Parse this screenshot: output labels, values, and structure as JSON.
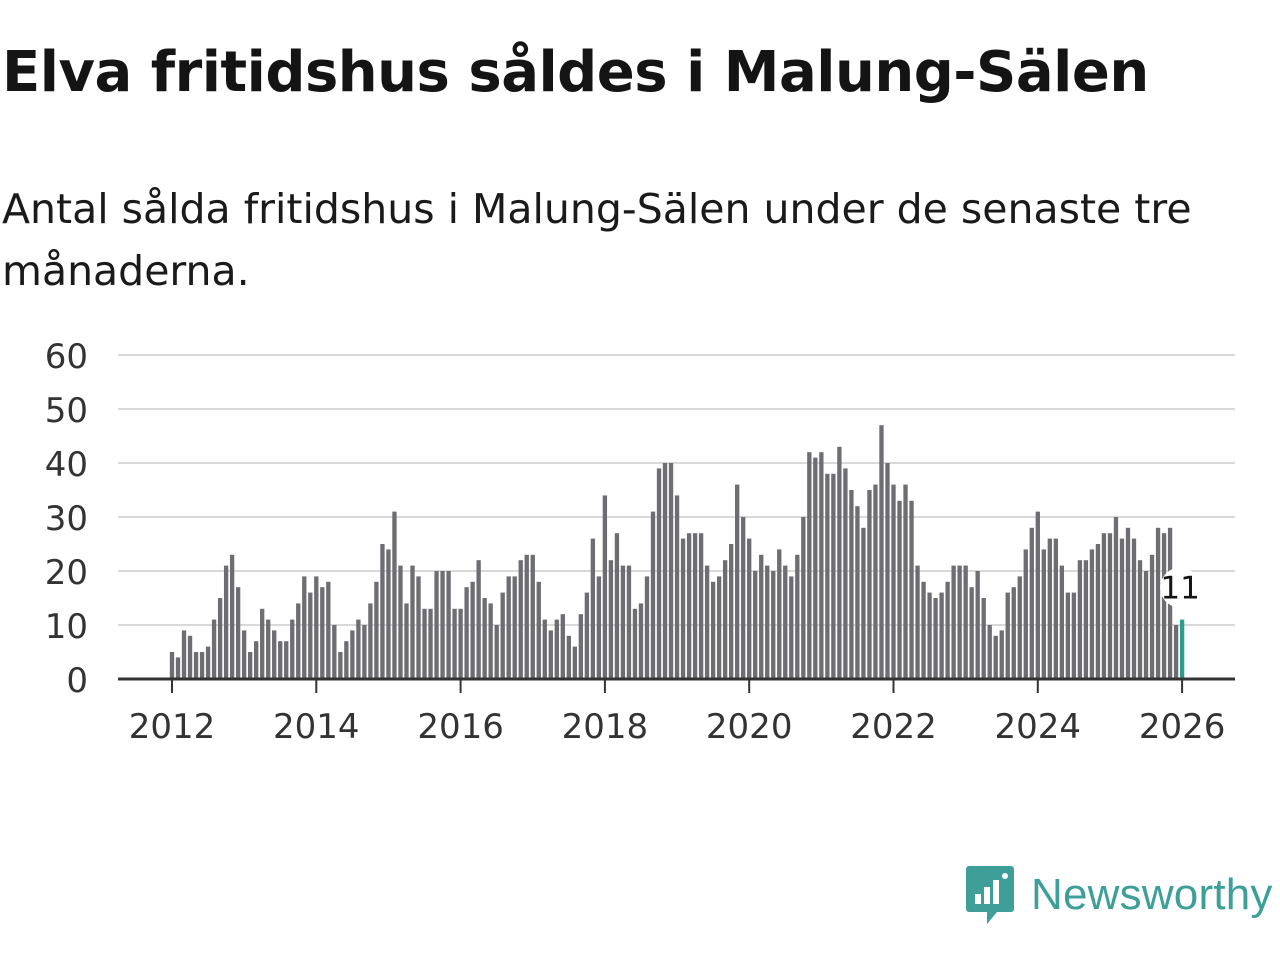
{
  "title": "Elva fritidshus såldes i Malung-Sälen",
  "subtitle": "Antal sålda fritidshus i Malung-Sälen under de senaste tre månaderna.",
  "brand": {
    "name": "Newsworthy",
    "color": "#3d9f98",
    "icon": "newsworthy-logo-icon"
  },
  "colors": {
    "bar": "#6e6d72",
    "highlight": "#2a9d8f",
    "grid": "#d9d9d9",
    "axis": "#333333"
  },
  "chart_data": {
    "type": "bar",
    "title": "Elva fritidshus såldes i Malung-Sälen",
    "xlabel": "",
    "ylabel": "",
    "ylim": [
      0,
      60
    ],
    "yticks": [
      "0",
      "10",
      "20",
      "30",
      "40",
      "50",
      "60"
    ],
    "xticks": [
      "2012",
      "2014",
      "2016",
      "2018",
      "2020",
      "2022",
      "2024",
      "2026"
    ],
    "start": "2012-01",
    "grid": true,
    "highlight_label": "11",
    "values": [
      5,
      4,
      9,
      8,
      5,
      5,
      6,
      11,
      15,
      21,
      23,
      17,
      9,
      5,
      7,
      13,
      11,
      9,
      7,
      7,
      11,
      14,
      19,
      16,
      19,
      17,
      18,
      10,
      5,
      7,
      9,
      11,
      10,
      14,
      18,
      25,
      24,
      31,
      21,
      14,
      21,
      19,
      13,
      13,
      20,
      20,
      20,
      13,
      13,
      17,
      18,
      22,
      15,
      14,
      10,
      16,
      19,
      19,
      22,
      23,
      23,
      18,
      11,
      9,
      11,
      12,
      8,
      6,
      12,
      16,
      26,
      19,
      34,
      22,
      27,
      21,
      21,
      13,
      14,
      19,
      31,
      39,
      40,
      40,
      34,
      26,
      27,
      27,
      27,
      21,
      18,
      19,
      22,
      25,
      36,
      30,
      26,
      20,
      23,
      21,
      20,
      24,
      21,
      19,
      23,
      30,
      42,
      41,
      42,
      38,
      38,
      43,
      39,
      35,
      32,
      28,
      35,
      36,
      47,
      40,
      36,
      33,
      36,
      33,
      21,
      18,
      16,
      15,
      16,
      18,
      21,
      21,
      21,
      17,
      20,
      15,
      10,
      8,
      9,
      16,
      17,
      19,
      24,
      28,
      31,
      24,
      26,
      26,
      21,
      16,
      16,
      22,
      22,
      24,
      25,
      27,
      27,
      30,
      26,
      28,
      26,
      22,
      20,
      23,
      28,
      27,
      28,
      10,
      11
    ]
  }
}
